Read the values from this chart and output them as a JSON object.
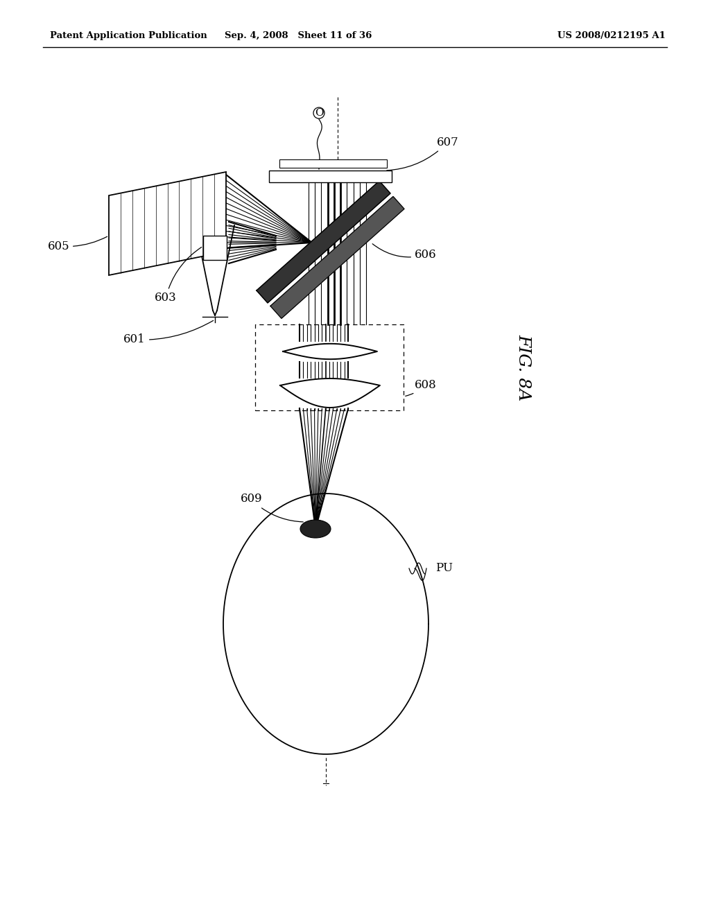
{
  "header_left": "Patent Application Publication",
  "header_mid": "Sep. 4, 2008   Sheet 11 of 36",
  "header_right": "US 2008/0212195 A1",
  "bg_color": "#ffffff",
  "line_color": "#000000",
  "fig_label": "FIG. 8A"
}
